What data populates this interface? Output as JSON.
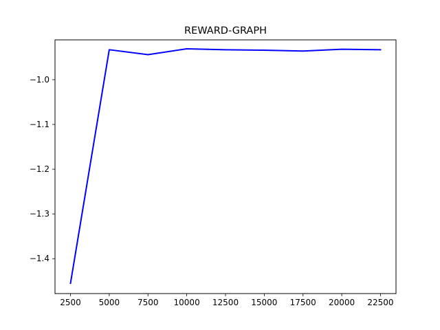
{
  "chart_data": {
    "type": "line",
    "title": "REWARD-GRAPH",
    "xlabel": "",
    "ylabel": "",
    "x": [
      2500,
      5000,
      7500,
      10000,
      12500,
      15000,
      17500,
      20000,
      22500
    ],
    "series": [
      {
        "color": "#0000ff",
        "values": [
          -1.455,
          -0.933,
          -0.944,
          -0.931,
          -0.933,
          -0.934,
          -0.936,
          -0.932,
          -0.933
        ]
      }
    ],
    "xlim": [
      1500,
      23500
    ],
    "ylim": [
      -1.478,
      -0.911
    ],
    "xticks": [
      2500,
      5000,
      7500,
      10000,
      12500,
      15000,
      17500,
      20000,
      22500
    ],
    "yticks": [
      -1.0,
      -1.1,
      -1.2,
      -1.3,
      -1.4
    ],
    "xtick_labels": [
      "2500",
      "5000",
      "7500",
      "10000",
      "12500",
      "15000",
      "17500",
      "20000",
      "22500"
    ],
    "ytick_labels": [
      "−1.0",
      "−1.1",
      "−1.2",
      "−1.3",
      "−1.4"
    ],
    "grid": false,
    "legend": "none"
  }
}
